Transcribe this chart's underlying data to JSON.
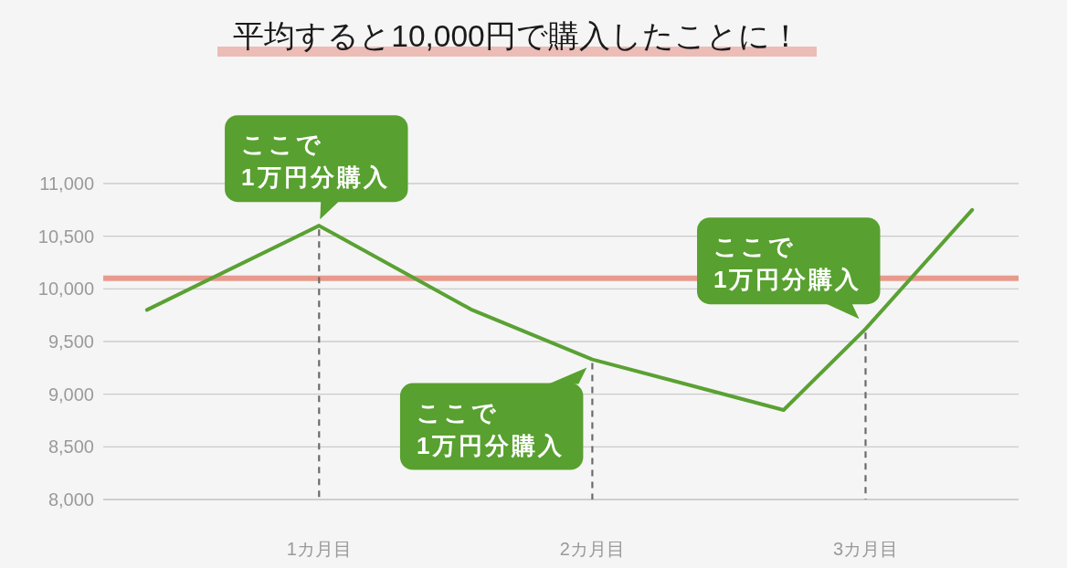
{
  "chart_data": {
    "type": "line",
    "title": "平均すると10,000円で購入したことに！",
    "series": [
      {
        "color": "#5aa133",
        "x": [
          0.37,
          1,
          1.56,
          2,
          2.7,
          3,
          3.39
        ],
        "values": [
          9800,
          10600,
          9800,
          9330,
          8850,
          9620,
          10750
        ]
      }
    ],
    "xlim": [
      0.21,
      3.56
    ],
    "xticks": [
      {
        "value": 1,
        "label": "1カ月目"
      },
      {
        "value": 2,
        "label": "2カ月目"
      },
      {
        "value": 3,
        "label": "3カ月目"
      }
    ],
    "ylim": [
      8000,
      11000
    ],
    "yticks": [
      {
        "value": 8000,
        "label": "8,000"
      },
      {
        "value": 8500,
        "label": "8,500"
      },
      {
        "value": 9000,
        "label": "9,000"
      },
      {
        "value": 9500,
        "label": "9,500"
      },
      {
        "value": 10000,
        "label": "10,000"
      },
      {
        "value": 10500,
        "label": "10,500"
      },
      {
        "value": 11000,
        "label": "11,000"
      }
    ],
    "grid": "y",
    "line_style": "solid",
    "ref_lines": [
      {
        "axis": "y",
        "value": 10100,
        "color": "#e89a8d"
      },
      {
        "axis": "x",
        "value": 1,
        "color": "#6b6b6b",
        "line_style": "dashed"
      },
      {
        "axis": "x",
        "value": 2,
        "color": "#6b6b6b",
        "line_style": "dashed"
      },
      {
        "axis": "x",
        "value": 3,
        "color": "#6b6b6b",
        "line_style": "dashed"
      }
    ],
    "annotations": [
      {
        "text": "ここで\n1万円分購入",
        "x": 1,
        "y": 10600
      },
      {
        "text": "ここで\n1万円分購入",
        "x": 2,
        "y": 9330
      },
      {
        "text": "ここで\n1万円分購入",
        "x": 3,
        "y": 9620
      }
    ]
  }
}
